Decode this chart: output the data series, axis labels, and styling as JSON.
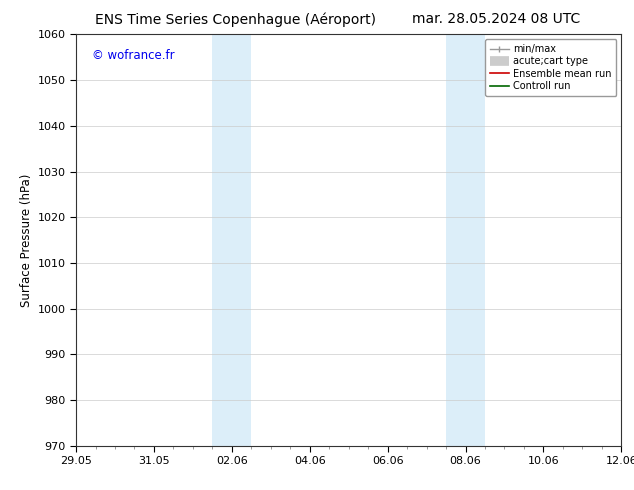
{
  "title_left": "ENS Time Series Copenhague (Aéroport)",
  "title_right": "mar. 28.05.2024 08 UTC",
  "ylabel": "Surface Pressure (hPa)",
  "ylim": [
    970,
    1060
  ],
  "yticks": [
    970,
    980,
    990,
    1000,
    1010,
    1020,
    1030,
    1040,
    1050,
    1060
  ],
  "xlabels": [
    "29.05",
    "31.05",
    "02.06",
    "04.06",
    "06.06",
    "08.06",
    "10.06",
    "12.06"
  ],
  "x_positions": [
    0,
    2,
    4,
    6,
    8,
    10,
    12,
    14
  ],
  "xlim": [
    0,
    14
  ],
  "shaded_bands": [
    {
      "x_start": 3.5,
      "x_end": 4.0
    },
    {
      "x_start": 4.0,
      "x_end": 4.5
    },
    {
      "x_start": 9.5,
      "x_end": 10.0
    },
    {
      "x_start": 10.0,
      "x_end": 10.5
    }
  ],
  "shade_color": "#dceef9",
  "background_color": "#ffffff",
  "watermark_text": "© wofrance.fr",
  "watermark_color": "#0000ee",
  "title_fontsize": 10,
  "tick_fontsize": 8,
  "ylabel_fontsize": 8.5,
  "watermark_fontsize": 8.5,
  "legend_fontsize": 7
}
